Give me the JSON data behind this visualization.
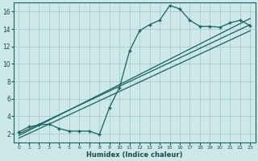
{
  "xlabel": "Humidex (Indice chaleur)",
  "background_color": "#cce8e8",
  "grid_color": "#aacccc",
  "line_color": "#1a6060",
  "xlim": [
    -0.5,
    23.5
  ],
  "ylim": [
    1.0,
    17.0
  ],
  "xticks": [
    0,
    1,
    2,
    3,
    4,
    5,
    6,
    7,
    8,
    9,
    10,
    11,
    12,
    13,
    14,
    15,
    16,
    17,
    18,
    19,
    20,
    21,
    22,
    23
  ],
  "yticks": [
    2,
    4,
    6,
    8,
    10,
    12,
    14,
    16
  ],
  "line1_x": [
    0,
    1,
    2,
    3,
    4,
    5,
    6,
    7,
    8,
    9,
    10,
    11,
    12,
    13,
    14,
    15,
    16,
    17,
    18,
    19,
    20,
    21,
    22,
    23
  ],
  "line1_y": [
    2.2,
    2.8,
    3.0,
    3.1,
    2.6,
    2.3,
    2.3,
    2.3,
    1.9,
    5.0,
    7.3,
    11.5,
    13.8,
    14.5,
    15.0,
    16.7,
    16.3,
    15.0,
    14.3,
    14.3,
    14.2,
    14.7,
    15.0,
    14.4
  ],
  "line2_x": [
    0,
    23
  ],
  "line2_y": [
    2.0,
    14.5
  ],
  "line3_x": [
    0,
    23
  ],
  "line3_y": [
    1.8,
    15.2
  ],
  "line4_x": [
    0,
    23
  ],
  "line4_y": [
    1.5,
    13.8
  ]
}
